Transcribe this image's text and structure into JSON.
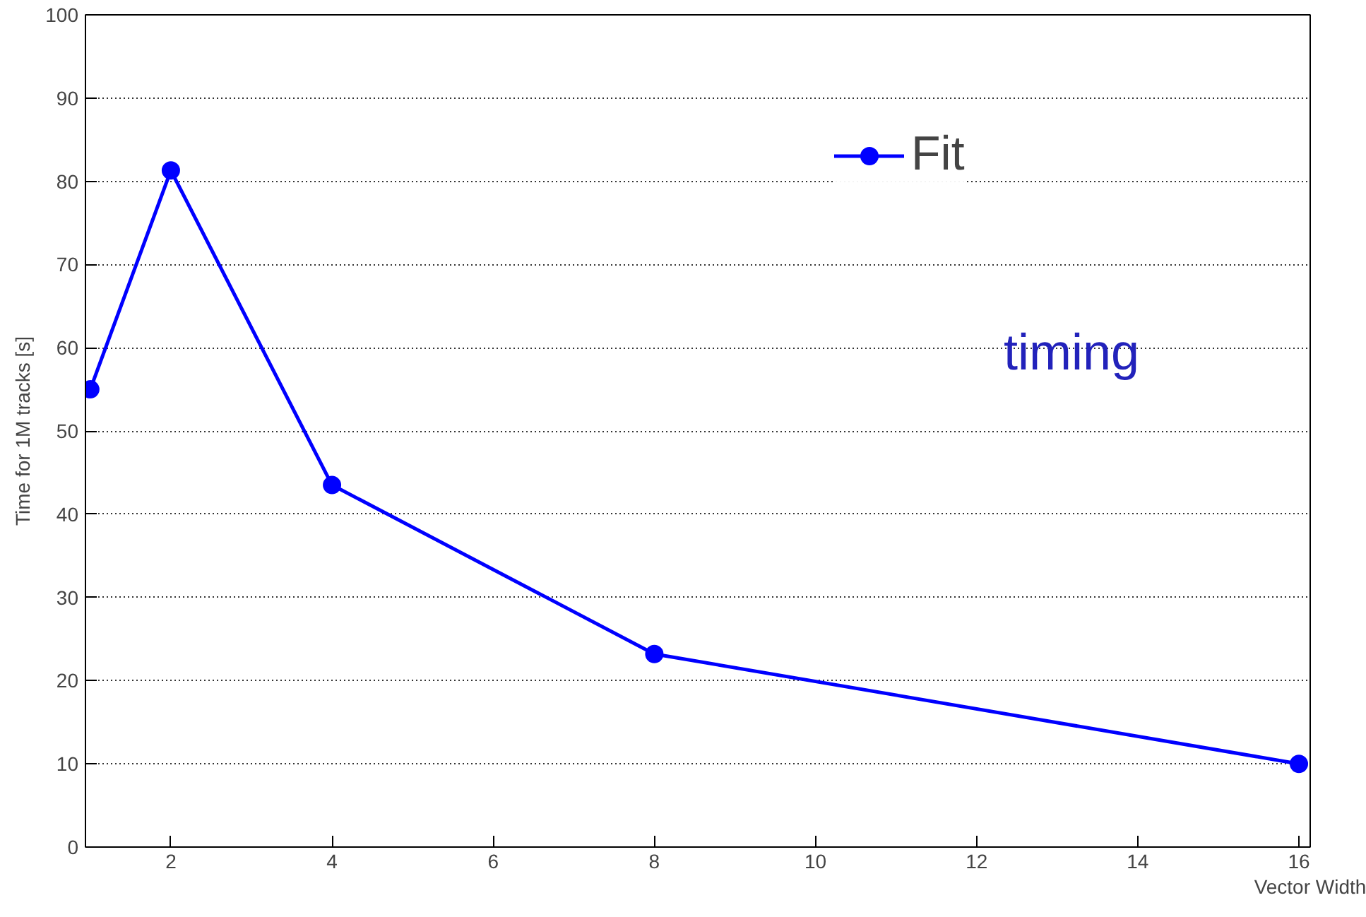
{
  "chart_data": {
    "type": "line",
    "xlabel": "Vector Width",
    "ylabel": "Time for 1M tracks [s]",
    "x": [
      1,
      2,
      4,
      8,
      16
    ],
    "series": [
      {
        "name": "Fit",
        "color": "#0000ff",
        "values": [
          55,
          81.3,
          43.5,
          23.2,
          10
        ]
      }
    ],
    "xlim": [
      0.94,
      16.14
    ],
    "ylim": [
      0,
      100
    ],
    "xticks": [
      2,
      4,
      6,
      8,
      10,
      12,
      14,
      16
    ],
    "yticks": [
      0,
      10,
      20,
      30,
      40,
      50,
      60,
      70,
      80,
      90,
      100
    ],
    "grid": "y",
    "legend": "top right",
    "marker": "circle",
    "line_style": "solid",
    "annotations": [
      "timing"
    ]
  }
}
